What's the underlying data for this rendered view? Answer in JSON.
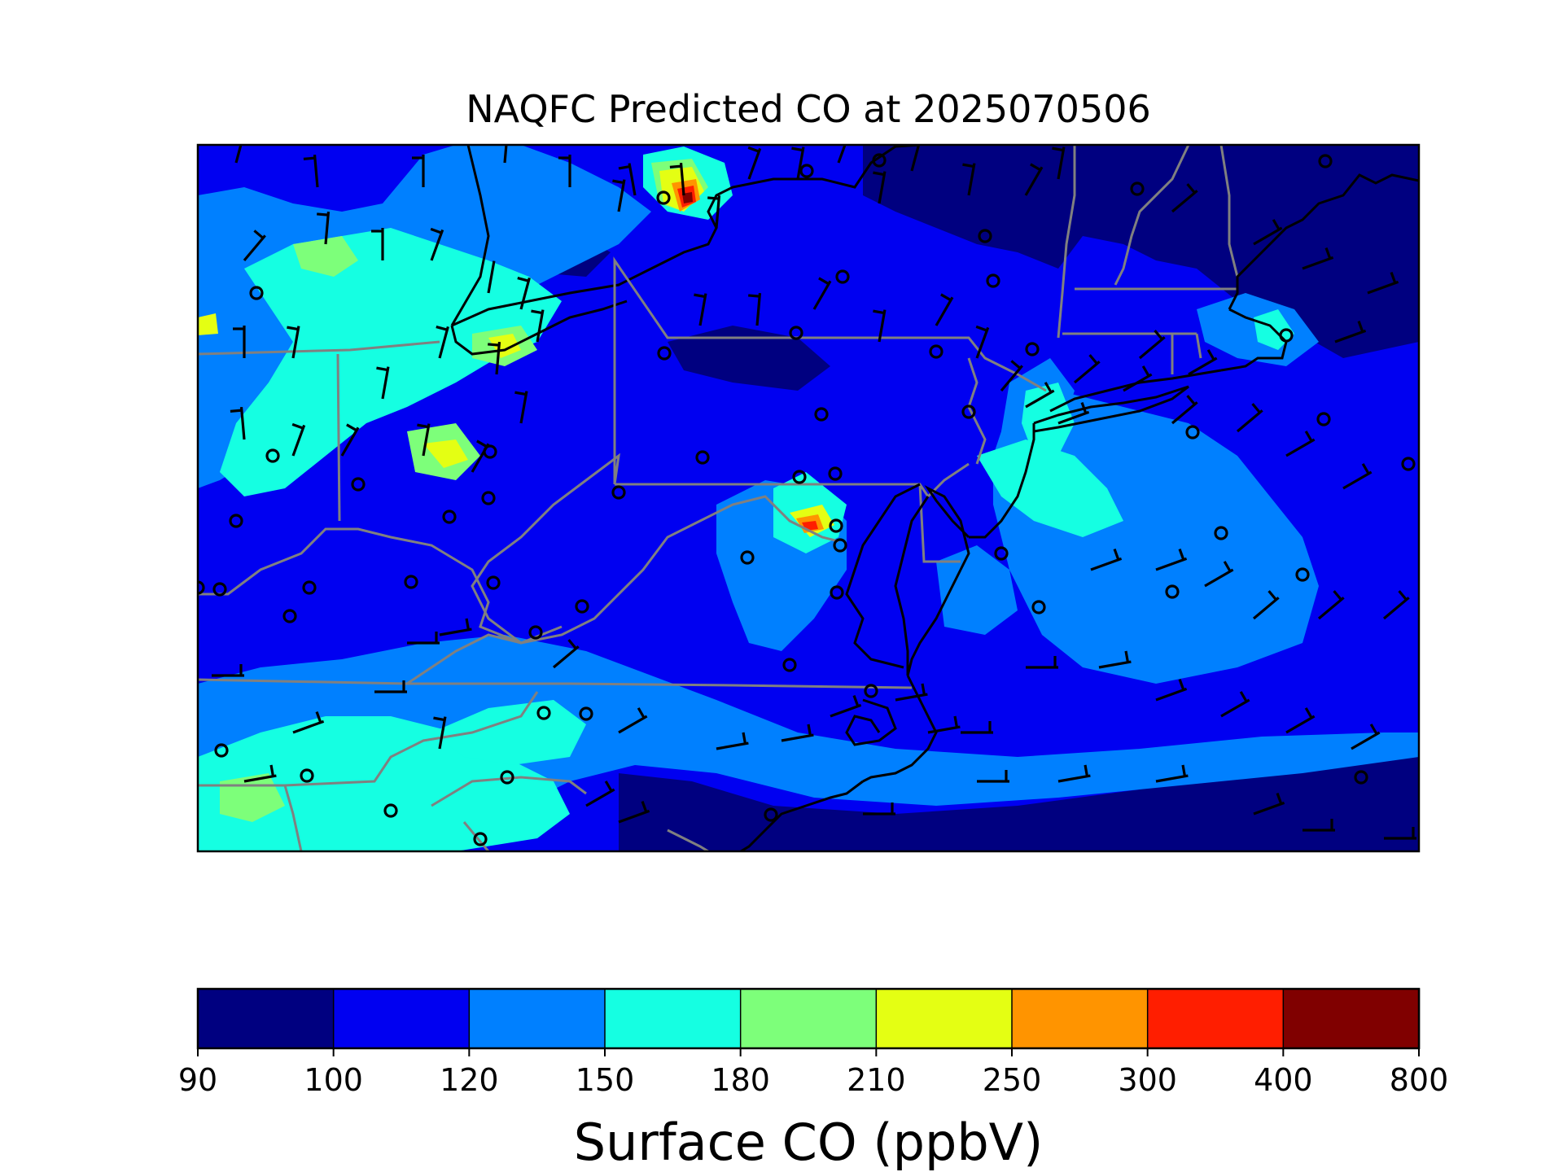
{
  "title": "NAQFC Predicted CO at 2025070506",
  "colorbar": {
    "label": "Surface CO (ppbV)",
    "ticks": [
      "90",
      "100",
      "120",
      "150",
      "180",
      "210",
      "250",
      "300",
      "400",
      "800"
    ],
    "bins": [
      {
        "from": 90,
        "to": 100,
        "color": "#000080"
      },
      {
        "from": 100,
        "to": 120,
        "color": "#0000f1"
      },
      {
        "from": 120,
        "to": 150,
        "color": "#0080ff"
      },
      {
        "from": 150,
        "to": 180,
        "color": "#15ffe2"
      },
      {
        "from": 180,
        "to": 210,
        "color": "#7dff7a"
      },
      {
        "from": 210,
        "to": 250,
        "color": "#e4ff13"
      },
      {
        "from": 250,
        "to": 300,
        "color": "#ff9400"
      },
      {
        "from": 300,
        "to": 400,
        "color": "#ff1e00"
      },
      {
        "from": 400,
        "to": 800,
        "color": "#800000"
      }
    ]
  },
  "map": {
    "background_level": "100-120 ppbV",
    "features": [
      "CO concentration field",
      "wind barbs",
      "calm-wind circles",
      "coastlines",
      "state boundaries",
      "country boundary"
    ],
    "colors": {
      "coastline": "#000000",
      "state_boundary": "#808080",
      "country_boundary": "#000000"
    }
  }
}
